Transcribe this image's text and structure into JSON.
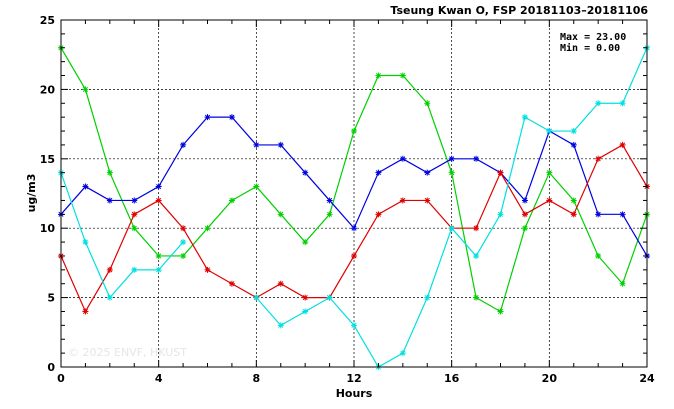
{
  "chart_data": {
    "type": "line",
    "title": "Tseung Kwan O, FSP 20181103–20181106",
    "xlabel": "Hours",
    "ylabel": "ug/m3",
    "xlim": [
      0,
      24
    ],
    "ylim": [
      0,
      25
    ],
    "x_ticks": [
      0,
      4,
      8,
      12,
      16,
      20,
      24
    ],
    "y_ticks": [
      0,
      5,
      10,
      15,
      20,
      25
    ],
    "grid": "dashed",
    "legend": "none",
    "stats": {
      "max_line": "Max = 23.00",
      "min_line": "Min =  0.00"
    },
    "watermark": "© 2025  ENVF, HKUST",
    "x": [
      0,
      1,
      2,
      3,
      4,
      5,
      6,
      7,
      8,
      9,
      10,
      11,
      12,
      13,
      14,
      15,
      16,
      17,
      18,
      19,
      20,
      21,
      22,
      23,
      24
    ],
    "series": [
      {
        "color": "#00d000",
        "values": [
          23,
          20,
          14,
          10,
          8,
          8,
          10,
          12,
          13,
          11,
          9,
          11,
          17,
          21,
          21,
          19,
          14,
          5,
          4,
          10,
          14,
          12,
          8,
          6,
          11
        ]
      },
      {
        "color": "#0000e0",
        "values": [
          11,
          13,
          12,
          12,
          13,
          16,
          18,
          18,
          16,
          16,
          14,
          12,
          10,
          14,
          15,
          14,
          15,
          15,
          14,
          12,
          17,
          16,
          11,
          11,
          8
        ]
      },
      {
        "color": "#e00000",
        "values": [
          8,
          4,
          7,
          11,
          12,
          10,
          7,
          6,
          5,
          6,
          5,
          5,
          8,
          11,
          12,
          12,
          10,
          10,
          14,
          11,
          12,
          11,
          15,
          16,
          13
        ]
      },
      {
        "color": "#00e0e0",
        "values": [
          14,
          9,
          5,
          7,
          7,
          9,
          null,
          null,
          5,
          3,
          4,
          5,
          3,
          0,
          1,
          5,
          10,
          8,
          11,
          18,
          17,
          17,
          19,
          19,
          23
        ]
      }
    ]
  }
}
